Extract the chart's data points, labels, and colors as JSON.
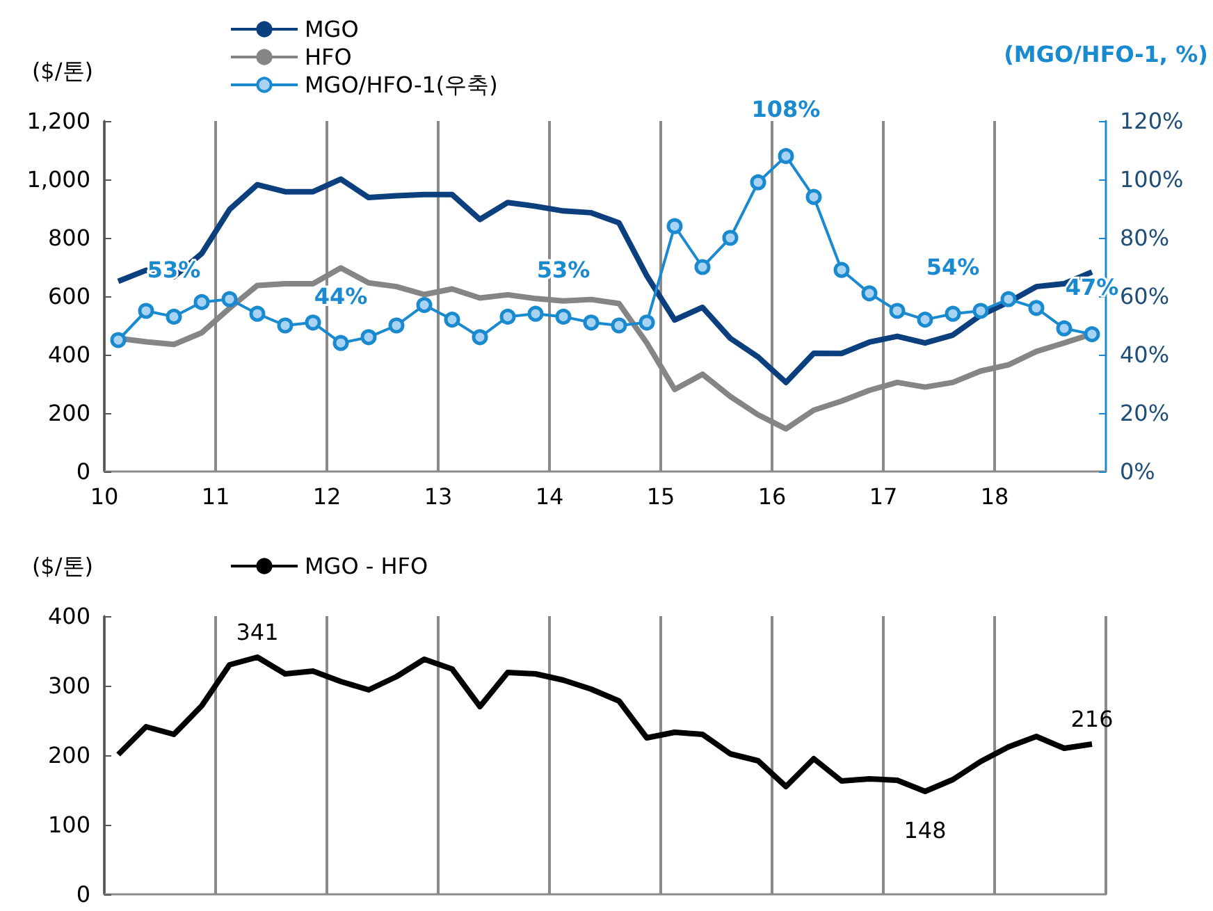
{
  "chart_data": [
    {
      "type": "line",
      "ylabel": "($/톤)",
      "y2label": "(MGO/HFO-1, %)",
      "x": [
        10.125,
        10.375,
        10.625,
        10.875,
        11.125,
        11.375,
        11.625,
        11.875,
        12.125,
        12.375,
        12.625,
        12.875,
        13.125,
        13.375,
        13.625,
        13.875,
        14.125,
        14.375,
        14.625,
        14.875,
        15.125,
        15.375,
        15.625,
        15.875,
        16.125,
        16.375,
        16.625,
        16.875,
        17.125,
        17.375,
        17.625,
        17.875,
        18.125,
        18.375,
        18.625,
        18.875
      ],
      "series": [
        {
          "name": "MGO",
          "color": "#0b3f7e",
          "marker": "none",
          "values": [
            651,
            689,
            667,
            746,
            897,
            982,
            958,
            958,
            1001,
            938,
            944,
            948,
            948,
            863,
            921,
            908,
            892,
            886,
            851,
            670,
            519,
            562,
            456,
            392,
            305,
            405,
            404,
            443,
            463,
            440,
            467,
            535,
            580,
            633,
            643,
            683
          ]
        },
        {
          "name": "HFO",
          "color": "#858585",
          "marker": "none",
          "values": [
            456,
            444,
            435,
            475,
            559,
            637,
            643,
            643,
            697,
            646,
            633,
            606,
            625,
            594,
            605,
            592,
            584,
            589,
            575,
            440,
            281,
            333,
            257,
            194,
            146,
            210,
            241,
            278,
            305,
            289,
            305,
            344,
            365,
            411,
            440,
            471
          ]
        },
        {
          "name": "MGO/HFO-1(우축)",
          "color": "#1a8ad0",
          "marker": "circle",
          "axis": "y2",
          "values": [
            45,
            55,
            53,
            58,
            59,
            54,
            50,
            51,
            44,
            46,
            50,
            57,
            52,
            46,
            53,
            54,
            53,
            51,
            50,
            51,
            84,
            70,
            80,
            99,
            108,
            94,
            69,
            61,
            55,
            52,
            54,
            55,
            59,
            56,
            49,
            47
          ],
          "value_labels": [
            null,
            null,
            "53%",
            null,
            null,
            null,
            null,
            null,
            "44%",
            null,
            null,
            null,
            null,
            null,
            null,
            null,
            "53%",
            null,
            null,
            null,
            null,
            null,
            null,
            null,
            "108%",
            null,
            null,
            null,
            null,
            null,
            "54%",
            null,
            null,
            null,
            null,
            "47%"
          ]
        }
      ],
      "xlim": [
        10,
        19
      ],
      "xticks": [
        10,
        11,
        12,
        13,
        14,
        15,
        16,
        17,
        18
      ],
      "ylim": [
        0,
        1200
      ],
      "yticks": [
        0,
        200,
        400,
        600,
        800,
        {
          "value": 1000,
          "label": "1,000"
        },
        {
          "value": 1200,
          "label": "1,200"
        }
      ],
      "y2lim": [
        0,
        120
      ],
      "y2ticks": [
        {
          "value": 0,
          "label": "0%"
        },
        {
          "value": 20,
          "label": "20%"
        },
        {
          "value": 40,
          "label": "40%"
        },
        {
          "value": 60,
          "label": "60%"
        },
        {
          "value": 80,
          "label": "80%"
        },
        {
          "value": 100,
          "label": "100%"
        },
        {
          "value": 120,
          "label": "120%"
        }
      ],
      "grid": "x",
      "legend": "top"
    },
    {
      "type": "line",
      "ylabel": "($/톤)",
      "x": [
        10.125,
        10.375,
        10.625,
        10.875,
        11.125,
        11.375,
        11.625,
        11.875,
        12.125,
        12.375,
        12.625,
        12.875,
        13.125,
        13.375,
        13.625,
        13.875,
        14.125,
        14.375,
        14.625,
        14.875,
        15.125,
        15.375,
        15.625,
        15.875,
        16.125,
        16.375,
        16.625,
        16.875,
        17.125,
        17.375,
        17.625,
        17.875,
        18.125,
        18.375,
        18.625,
        18.875
      ],
      "series": [
        {
          "name": "MGO - HFO",
          "color": "#000000",
          "marker": "none",
          "values": [
            201,
            241,
            230,
            271,
            330,
            341,
            317,
            321,
            306,
            294,
            313,
            338,
            324,
            270,
            319,
            317,
            308,
            295,
            278,
            225,
            233,
            230,
            202,
            192,
            155,
            195,
            163,
            166,
            164,
            148,
            165,
            191,
            212,
            227,
            210,
            216
          ],
          "value_labels": [
            null,
            null,
            null,
            null,
            null,
            "341",
            null,
            null,
            null,
            null,
            null,
            null,
            null,
            null,
            null,
            null,
            null,
            null,
            null,
            null,
            null,
            null,
            null,
            null,
            null,
            null,
            null,
            null,
            null,
            "148",
            null,
            null,
            null,
            null,
            null,
            "216"
          ]
        }
      ],
      "xlim": [
        10,
        19
      ],
      "xticks": [
        10,
        11,
        12,
        13,
        14,
        15,
        16,
        17,
        18,
        19
      ],
      "ylim": [
        0,
        400
      ],
      "yticks": [
        0,
        100,
        200,
        300,
        400
      ],
      "grid": "x",
      "legend": "top",
      "tick_labels": "y"
    }
  ]
}
